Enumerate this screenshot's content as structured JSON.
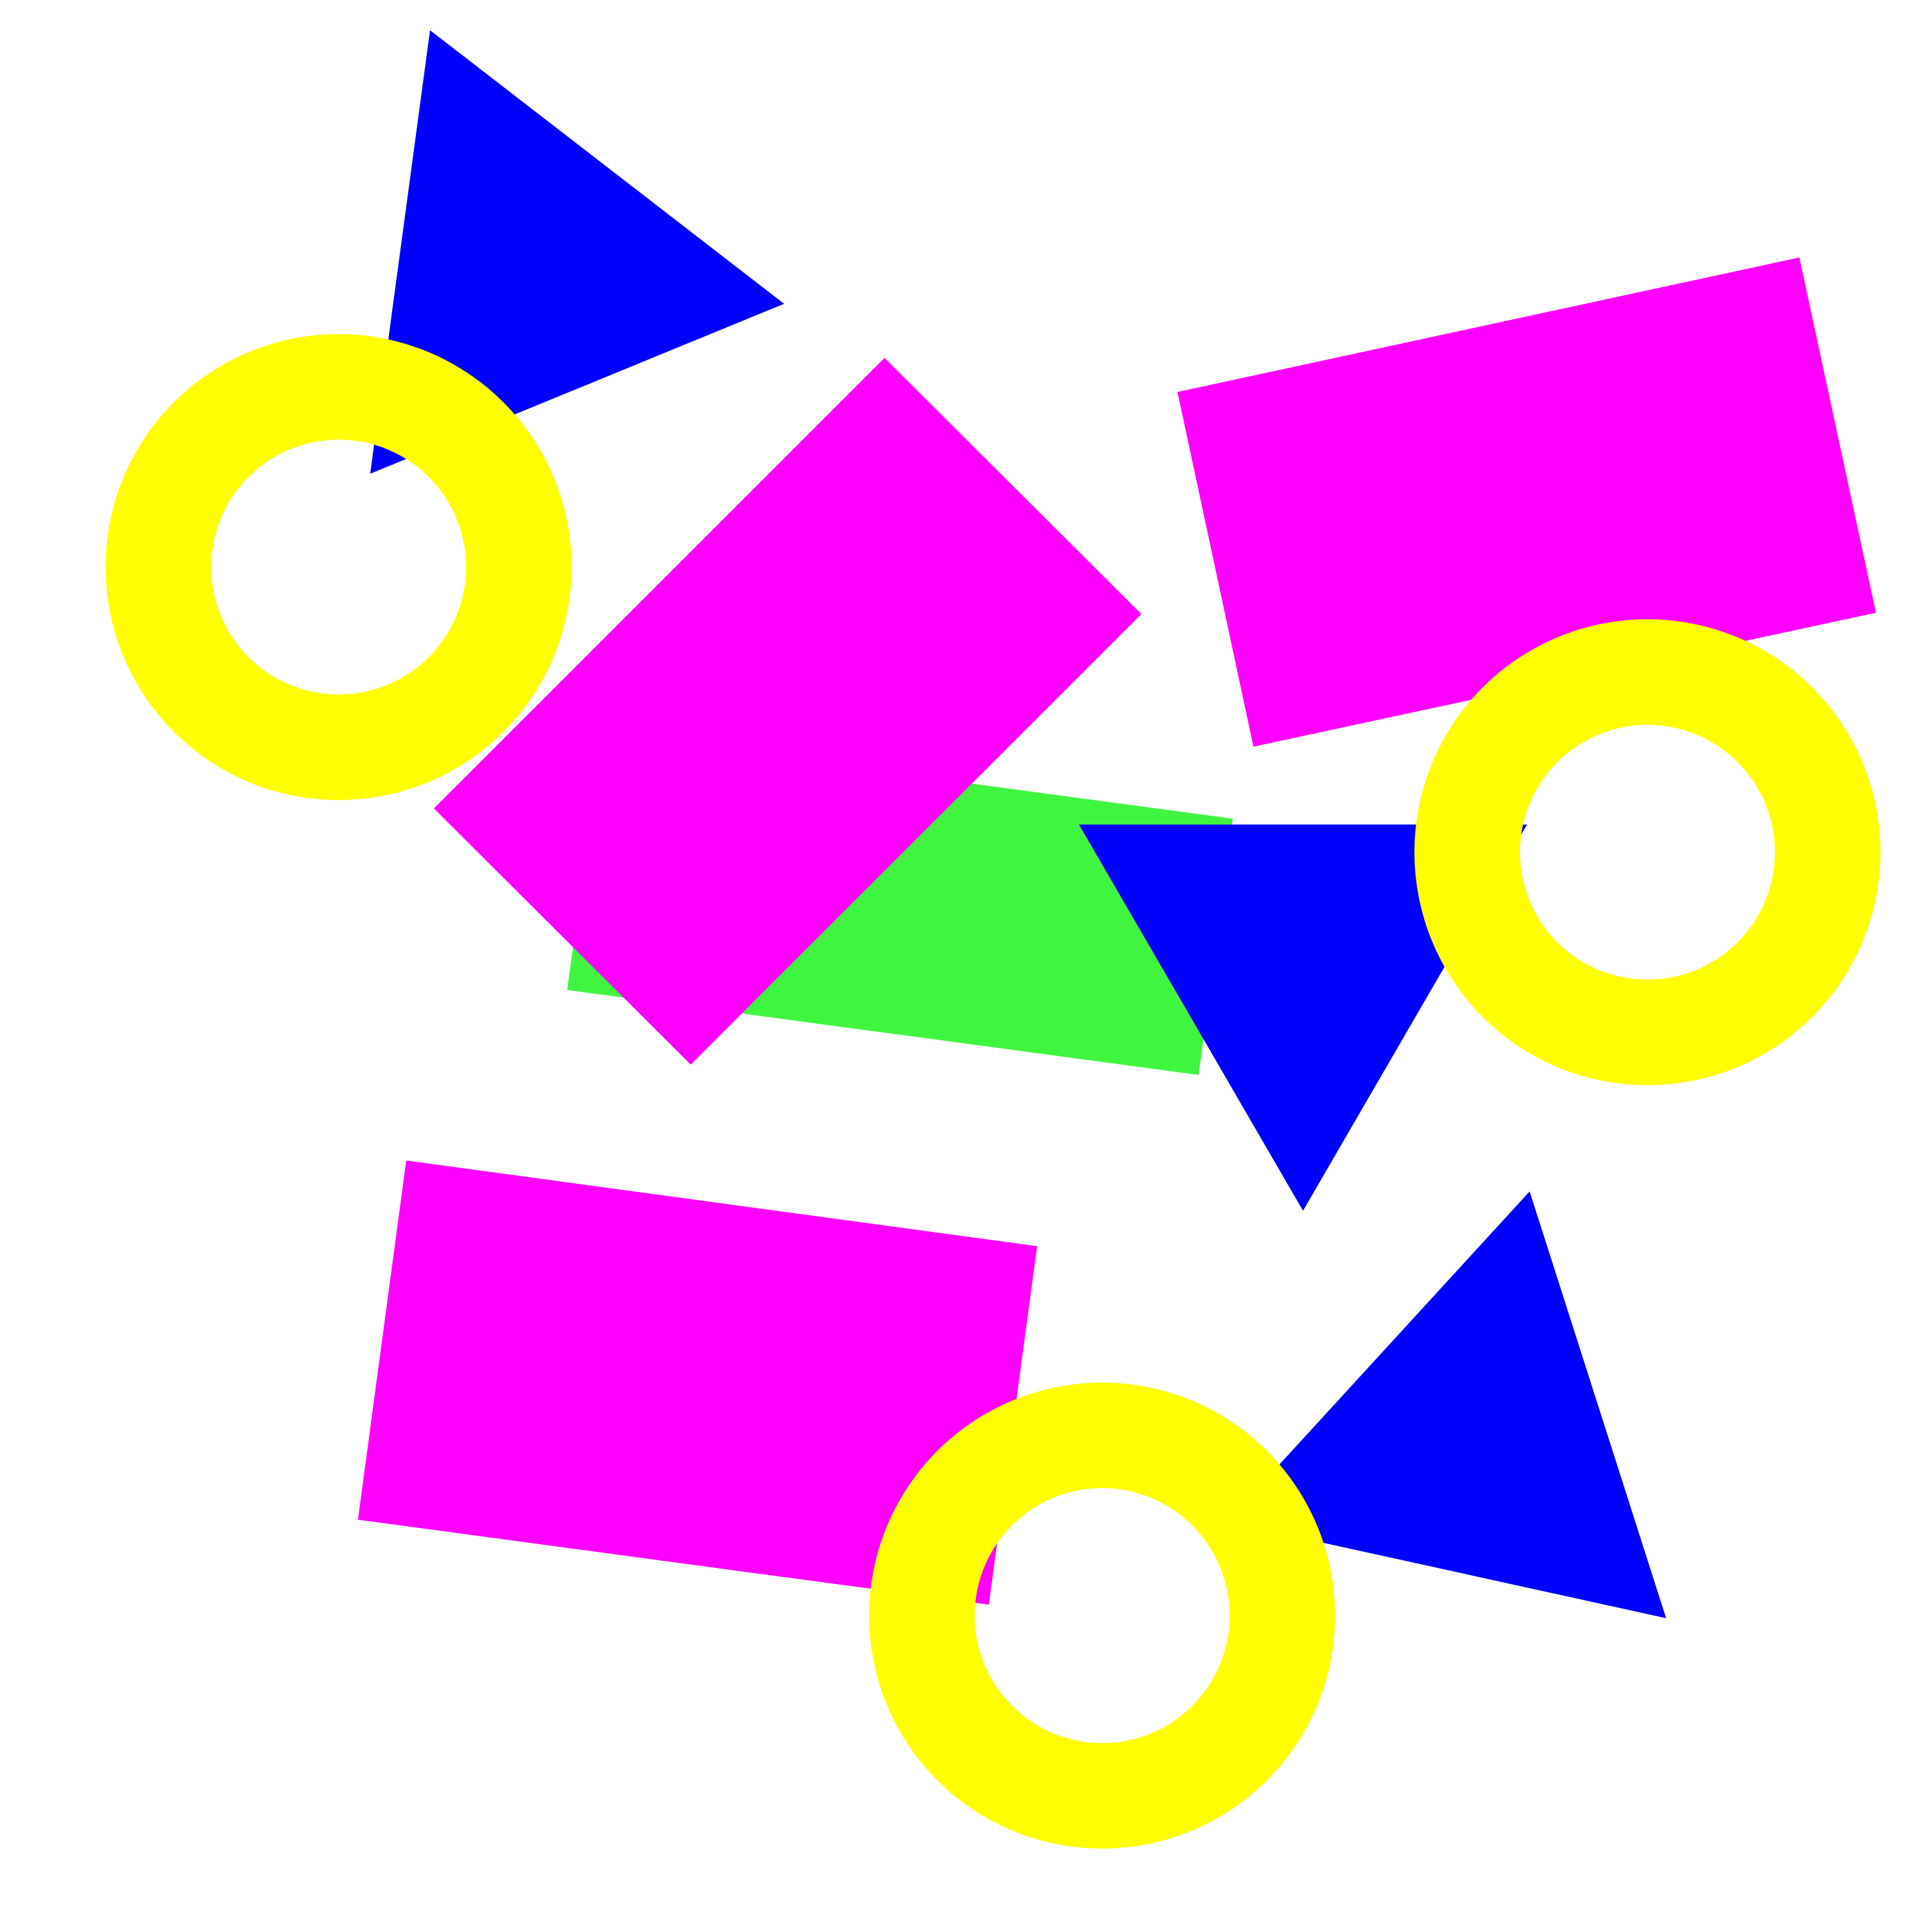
{
  "colors": {
    "background": "#ffffff",
    "magenta": "#ff00ff",
    "blue": "#0000ff",
    "green": "#40f540",
    "yellow": "#ffff00"
  },
  "shapes": {
    "green_rectangle": {
      "color": "green"
    },
    "magenta_rectangle_top_right": {
      "color": "magenta"
    },
    "magenta_rectangle_center": {
      "color": "magenta"
    },
    "magenta_rectangle_bottom_left": {
      "color": "magenta"
    },
    "blue_triangle_top_left": {
      "color": "blue"
    },
    "blue_triangle_center_right": {
      "color": "blue"
    },
    "blue_triangle_bottom_right": {
      "color": "blue"
    },
    "yellow_ring_top_left": {
      "color": "yellow"
    },
    "yellow_ring_right": {
      "color": "yellow"
    },
    "yellow_ring_bottom": {
      "color": "yellow"
    }
  }
}
